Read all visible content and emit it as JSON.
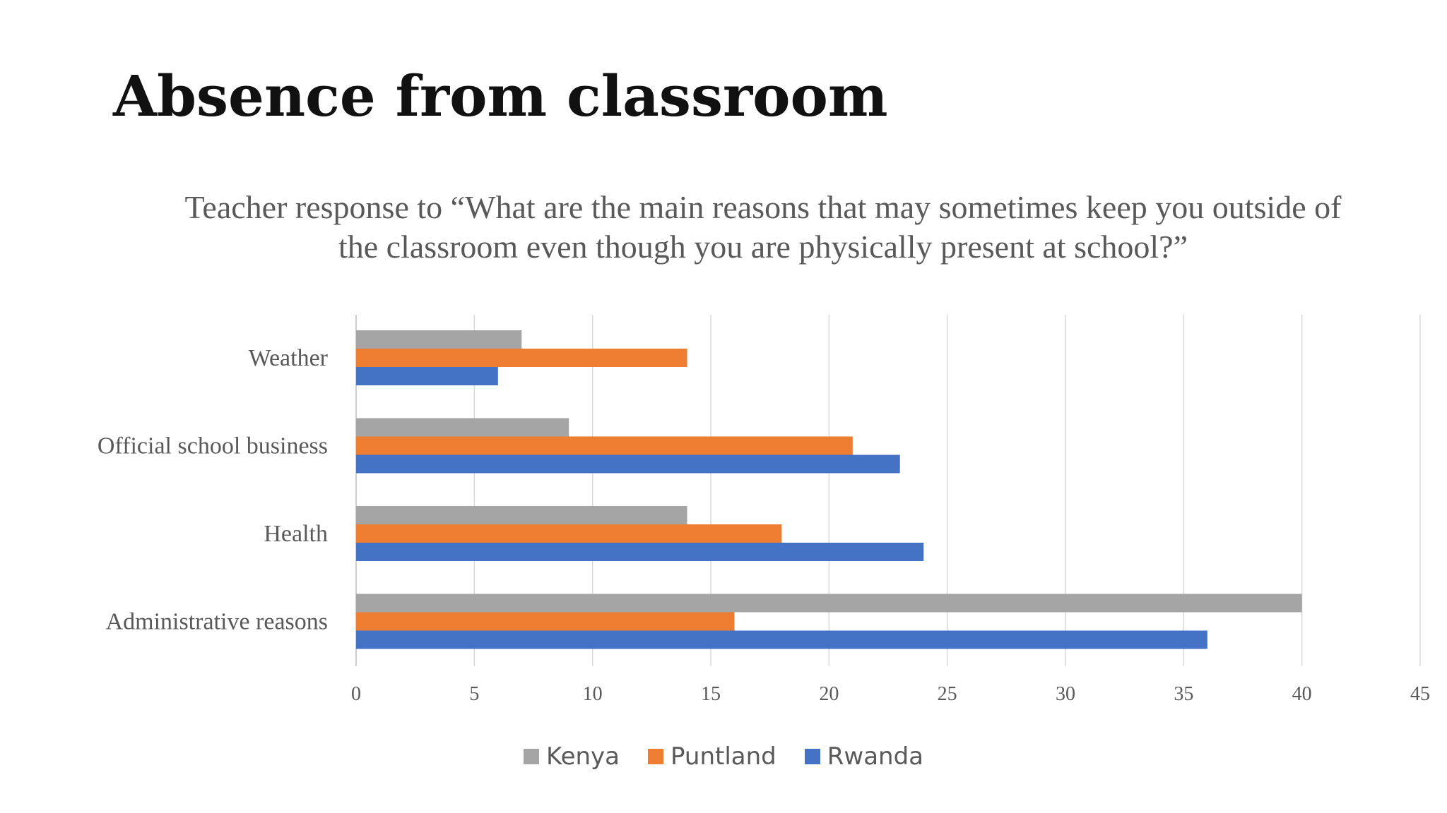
{
  "slide": {
    "title": "Absence from classroom",
    "subtitle": "Teacher response to “What are the main reasons that may sometimes keep you outside of the classroom even though you are physically present at school?”"
  },
  "chart_data": {
    "type": "bar",
    "orientation": "horizontal",
    "title": "",
    "xlabel": "",
    "ylabel": "",
    "categories": [
      "Weather",
      "Official school business",
      "Health",
      "Administrative reasons"
    ],
    "series": [
      {
        "name": "Kenya",
        "color": "#A5A5A5",
        "values": [
          7,
          9,
          14,
          40
        ]
      },
      {
        "name": "Puntland",
        "color": "#ED7D31",
        "values": [
          14,
          21,
          18,
          16
        ]
      },
      {
        "name": "Rwanda",
        "color": "#4472C4",
        "values": [
          6,
          23,
          24,
          36
        ]
      }
    ],
    "xlim": [
      0,
      45
    ],
    "xticks": [
      0,
      5,
      10,
      15,
      20,
      25,
      30,
      35,
      40,
      45
    ],
    "grid": true,
    "legend_position": "bottom"
  }
}
